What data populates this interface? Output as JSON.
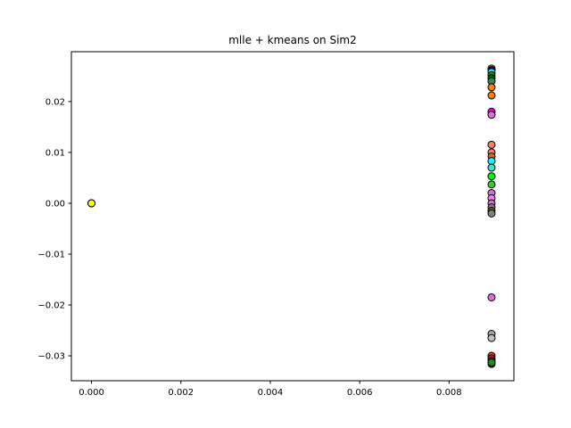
{
  "chart_data": {
    "type": "scatter",
    "title": "mlle + kmeans on Sim2",
    "xlabel": "",
    "ylabel": "",
    "xlim": [
      -0.00045,
      0.00945
    ],
    "ylim": [
      -0.0349,
      0.0298
    ],
    "grid": false,
    "x_ticks": [
      {
        "value": 0.0,
        "label": "0.000"
      },
      {
        "value": 0.002,
        "label": "0.002"
      },
      {
        "value": 0.004,
        "label": "0.004"
      },
      {
        "value": 0.006,
        "label": "0.006"
      },
      {
        "value": 0.008,
        "label": "0.008"
      }
    ],
    "y_ticks": [
      {
        "value": -0.03,
        "label": "−0.03"
      },
      {
        "value": -0.02,
        "label": "−0.02"
      },
      {
        "value": -0.01,
        "label": "−0.01"
      },
      {
        "value": 0.0,
        "label": "0.00"
      },
      {
        "value": 0.01,
        "label": "0.01"
      },
      {
        "value": 0.02,
        "label": "0.02"
      }
    ],
    "points": [
      {
        "x": 0.0,
        "y": 0.0,
        "color": "#ffff00"
      },
      {
        "x": 0.0,
        "y": 0.0,
        "color": "#ffff00"
      },
      {
        "x": 0.0,
        "y": 0.0,
        "color": "#ffff00"
      },
      {
        "x": 0.00895,
        "y": 0.0265,
        "color": "#ffd700"
      },
      {
        "x": 0.00895,
        "y": 0.0262,
        "color": "#0000cd"
      },
      {
        "x": 0.00895,
        "y": 0.0258,
        "color": "#00ffff"
      },
      {
        "x": 0.00895,
        "y": 0.0252,
        "color": "#228b22"
      },
      {
        "x": 0.00895,
        "y": 0.0246,
        "color": "#006400"
      },
      {
        "x": 0.00895,
        "y": 0.024,
        "color": "#2e8b57"
      },
      {
        "x": 0.00895,
        "y": 0.0228,
        "color": "#ff7f00"
      },
      {
        "x": 0.00895,
        "y": 0.0212,
        "color": "#ff7f00"
      },
      {
        "x": 0.00895,
        "y": 0.018,
        "color": "#ff00ff"
      },
      {
        "x": 0.00895,
        "y": 0.0174,
        "color": "#da70d6"
      },
      {
        "x": 0.00895,
        "y": 0.0115,
        "color": "#fa8072"
      },
      {
        "x": 0.00895,
        "y": 0.01,
        "color": "#fa8072"
      },
      {
        "x": 0.00895,
        "y": 0.0092,
        "color": "#d2691e"
      },
      {
        "x": 0.00895,
        "y": 0.0083,
        "color": "#00ffff"
      },
      {
        "x": 0.00895,
        "y": 0.007,
        "color": "#40e0d0"
      },
      {
        "x": 0.00895,
        "y": 0.0053,
        "color": "#00ff00"
      },
      {
        "x": 0.00895,
        "y": 0.0037,
        "color": "#32cd32"
      },
      {
        "x": 0.00895,
        "y": 0.002,
        "color": "#da70d6"
      },
      {
        "x": 0.00895,
        "y": 0.001,
        "color": "#ee82ee"
      },
      {
        "x": 0.00895,
        "y": 0.0,
        "color": "#da70d6"
      },
      {
        "x": 0.00895,
        "y": -0.0008,
        "color": "#8b7b8b"
      },
      {
        "x": 0.00895,
        "y": -0.0015,
        "color": "#556b2f"
      },
      {
        "x": 0.00895,
        "y": -0.002,
        "color": "#808080"
      },
      {
        "x": 0.00895,
        "y": -0.0185,
        "color": "#da70d6"
      },
      {
        "x": 0.00895,
        "y": -0.0257,
        "color": "#a9a9a9"
      },
      {
        "x": 0.00895,
        "y": -0.0265,
        "color": "#c0c0c0"
      },
      {
        "x": 0.00895,
        "y": -0.03,
        "color": "#ff4500"
      },
      {
        "x": 0.00895,
        "y": -0.0305,
        "color": "#dc143c"
      },
      {
        "x": 0.00895,
        "y": -0.031,
        "color": "#2e8b57"
      },
      {
        "x": 0.00895,
        "y": -0.0316,
        "color": "#006400"
      },
      {
        "x": 0.00895,
        "y": -0.0313,
        "color": "#228b22"
      }
    ]
  }
}
